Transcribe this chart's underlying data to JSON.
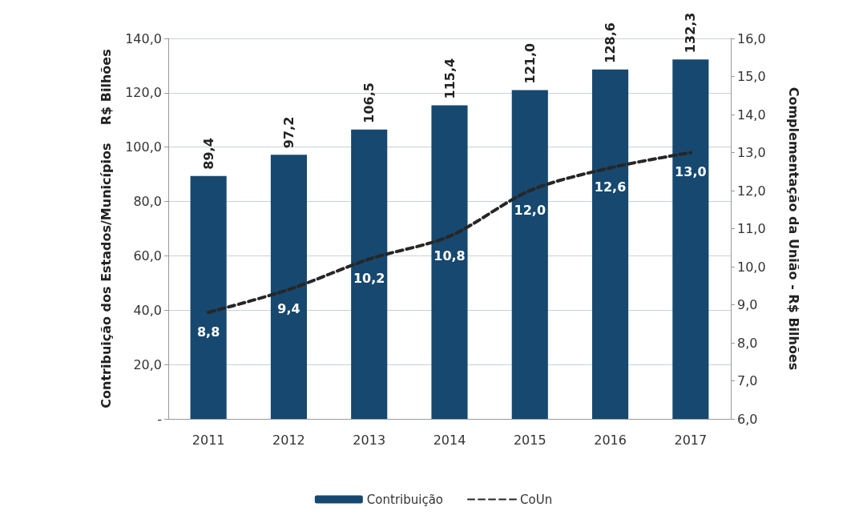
{
  "chart_data": {
    "type": "bar",
    "categories": [
      "2011",
      "2012",
      "2013",
      "2014",
      "2015",
      "2016",
      "2017"
    ],
    "ylabel": "Contribuição dos Estados/Municípios    R$ Bilhões",
    "y2label": "Complementação da União - R$ Bilhões",
    "series": [
      {
        "name": "Contribuição",
        "color": "#17486f",
        "values": [
          89.4,
          97.2,
          106.5,
          115.4,
          121.0,
          128.6,
          132.3
        ],
        "value_labels": [
          "89,4",
          "97,2",
          "106,5",
          "115,4",
          "121,0",
          "128,6",
          "132,3"
        ]
      },
      {
        "name": "CoUn",
        "type": "line",
        "axis": "y2",
        "color": "#262626",
        "line_style": "dashed",
        "marker": "none",
        "values": [
          8.8,
          9.4,
          10.2,
          10.8,
          12.0,
          12.6,
          13.0
        ],
        "value_labels": [
          "8,8",
          "9,4",
          "10,2",
          "10,8",
          "12,0",
          "12,6",
          "13,0"
        ]
      }
    ],
    "ylim": [
      0,
      140
    ],
    "yticks": [
      {
        "value": 0,
        "label": "-"
      },
      {
        "value": 20,
        "label": "20,0"
      },
      {
        "value": 40,
        "label": "40,0"
      },
      {
        "value": 60,
        "label": "60,0"
      },
      {
        "value": 80,
        "label": "80,0"
      },
      {
        "value": 100,
        "label": "100,0"
      },
      {
        "value": 120,
        "label": "120,0"
      },
      {
        "value": 140,
        "label": "140,0"
      }
    ],
    "y2lim": [
      6,
      16
    ],
    "y2ticks": [
      {
        "value": 6,
        "label": "6,0"
      },
      {
        "value": 7,
        "label": "7,0"
      },
      {
        "value": 8,
        "label": "8,0"
      },
      {
        "value": 9,
        "label": "9,0"
      },
      {
        "value": 10,
        "label": "10,0"
      },
      {
        "value": 11,
        "label": "11,0"
      },
      {
        "value": 12,
        "label": "12,0"
      },
      {
        "value": 13,
        "label": "13,0"
      },
      {
        "value": 14,
        "label": "14,0"
      },
      {
        "value": 15,
        "label": "15,0"
      },
      {
        "value": 16,
        "label": "16,0"
      }
    ],
    "grid": "y",
    "legend": "bottom"
  }
}
